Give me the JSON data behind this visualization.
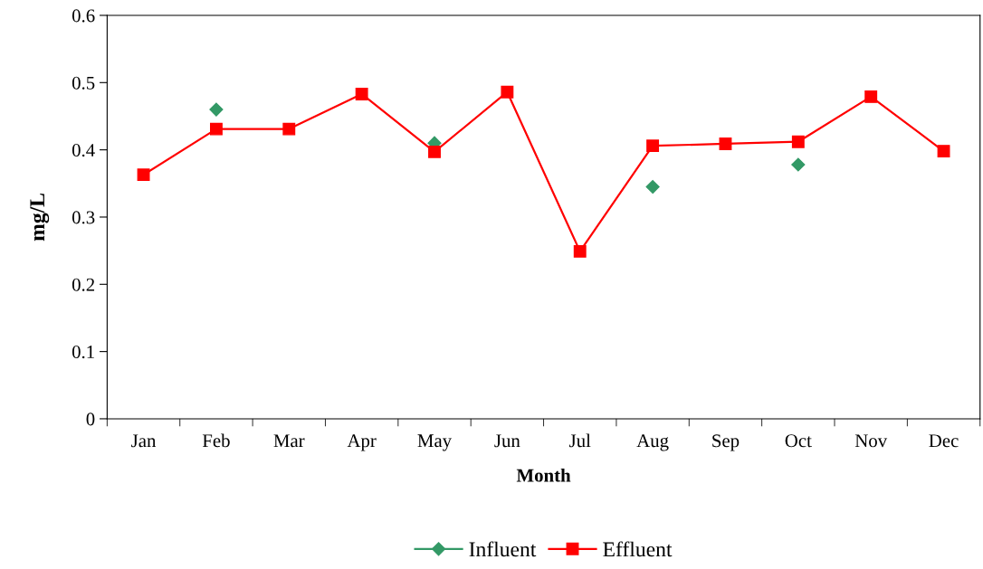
{
  "chart_data": {
    "type": "line",
    "xlabel": "Month",
    "ylabel": "mg/L",
    "categories": [
      "Jan",
      "Feb",
      "Mar",
      "Apr",
      "May",
      "Jun",
      "Jul",
      "Aug",
      "Sep",
      "Oct",
      "Nov",
      "Dec"
    ],
    "series": [
      {
        "name": "Influent",
        "type": "scatter",
        "color": "#339966",
        "marker": "diamond",
        "values": [
          null,
          0.46,
          null,
          null,
          0.41,
          null,
          null,
          0.345,
          null,
          0.378,
          null,
          null
        ]
      },
      {
        "name": "Effluent",
        "color": "#ff0000",
        "marker": "square",
        "values": [
          0.363,
          0.431,
          0.431,
          0.483,
          0.397,
          0.486,
          0.249,
          0.406,
          0.409,
          0.412,
          0.479,
          0.398
        ]
      }
    ],
    "ylim": [
      0,
      0.6
    ],
    "yticks": [
      {
        "value": 0,
        "label": "0"
      },
      0.1,
      0.2,
      0.3,
      0.4,
      0.5,
      0.6
    ],
    "grid": false,
    "legend": "bottom",
    "line_style": "solid"
  }
}
